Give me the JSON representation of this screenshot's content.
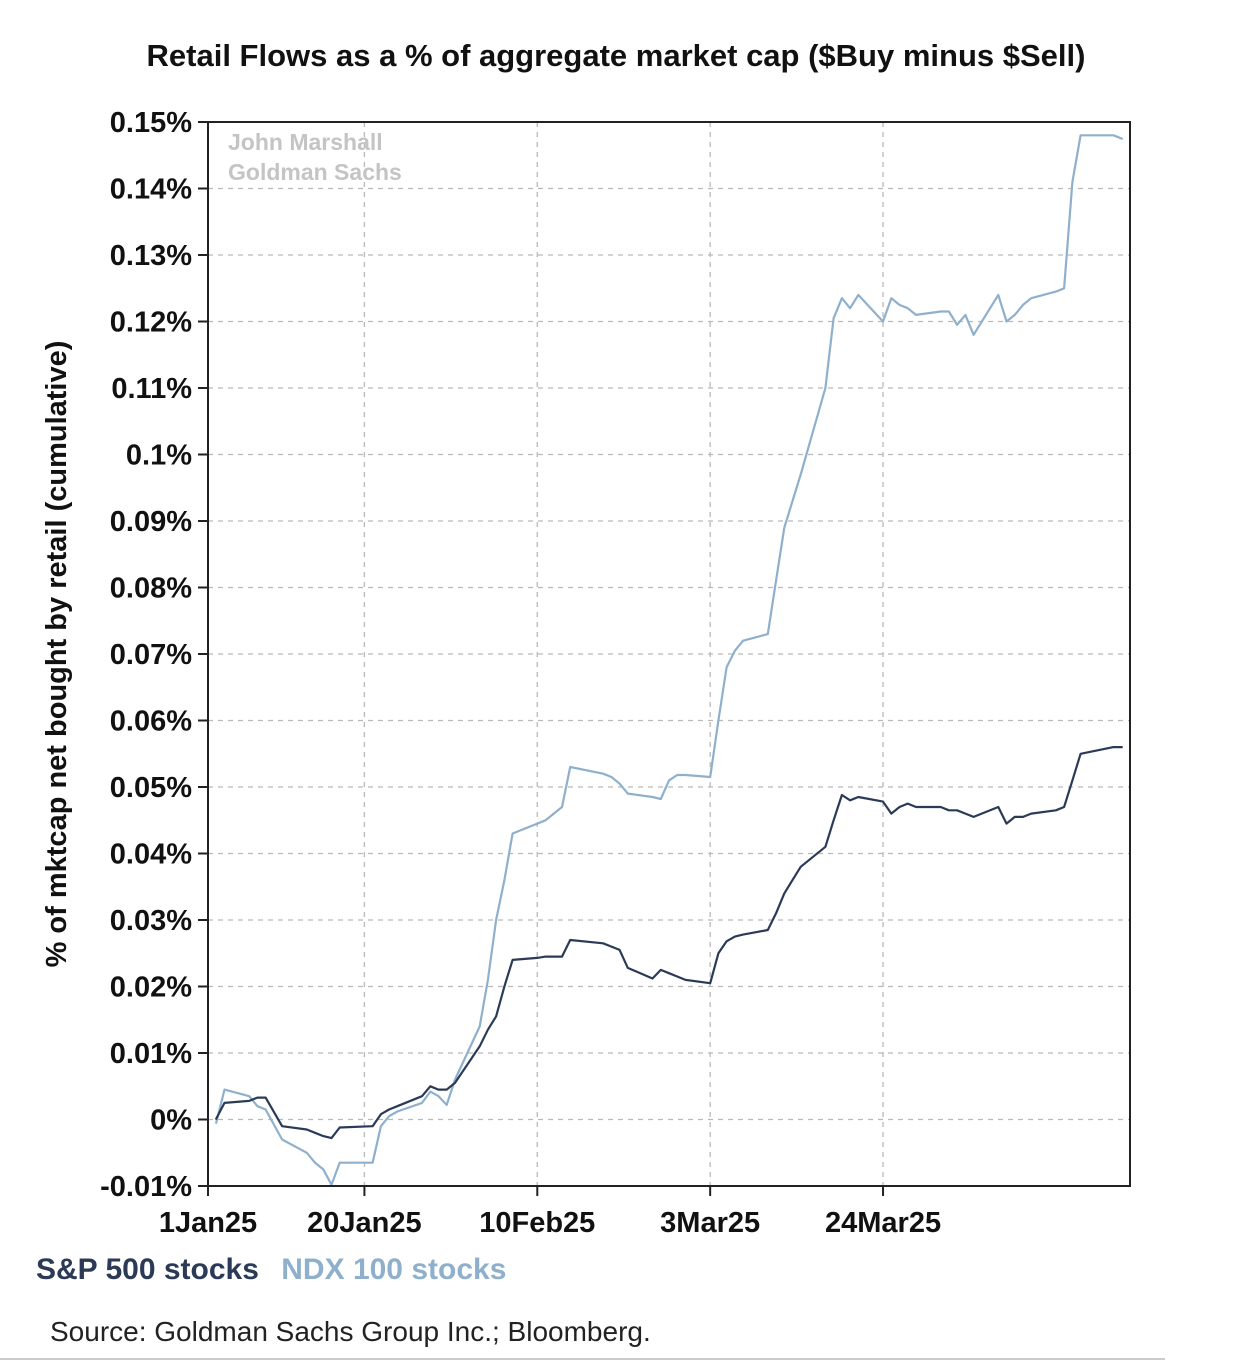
{
  "colors": {
    "sp500": "#2b3a57",
    "ndx100": "#8fb0cc",
    "grid": "#b9b9b9",
    "watermark": "#c4c4c4"
  },
  "chart_data": {
    "type": "line",
    "title": "Retail Flows as a % of aggregate market cap ($Buy minus $Sell)",
    "ylabel": "% of mktcap net bought by retail (cumulative)",
    "xlabel": "",
    "ylim": [
      -0.01,
      0.15
    ],
    "y_unit": "%",
    "y_ticks": [
      -0.01,
      0,
      0.01,
      0.02,
      0.03,
      0.04,
      0.05,
      0.06,
      0.07,
      0.08,
      0.09,
      0.1,
      0.11,
      0.12,
      0.13,
      0.14,
      0.15
    ],
    "y_tick_labels": [
      "-0.01%",
      "0%",
      "0.01%",
      "0.02%",
      "0.03%",
      "0.04%",
      "0.05%",
      "0.06%",
      "0.07%",
      "0.08%",
      "0.09%",
      "0.1%",
      "0.11%",
      "0.12%",
      "0.13%",
      "0.14%",
      "0.15%"
    ],
    "xlim": [
      "2025-01-01",
      "2025-04-23"
    ],
    "x_ticks": [
      "2025-01-01",
      "2025-01-20",
      "2025-02-10",
      "2025-03-03",
      "2025-03-24"
    ],
    "x_tick_labels": [
      "1Jan25",
      "20Jan25",
      "10Feb25",
      "3Mar25",
      "24Mar25"
    ],
    "grid": true,
    "legend": "bottom-left",
    "annotations": [
      "John Marshall",
      "Goldman Sachs"
    ],
    "series": [
      {
        "name": "S&P 500 stocks",
        "x": [
          "2025-01-02",
          "2025-01-03",
          "2025-01-06",
          "2025-01-07",
          "2025-01-08",
          "2025-01-10",
          "2025-01-13",
          "2025-01-14",
          "2025-01-15",
          "2025-01-16",
          "2025-01-17",
          "2025-01-21",
          "2025-01-22",
          "2025-01-23",
          "2025-01-24",
          "2025-01-27",
          "2025-01-28",
          "2025-01-29",
          "2025-01-30",
          "2025-01-31",
          "2025-02-03",
          "2025-02-04",
          "2025-02-05",
          "2025-02-06",
          "2025-02-07",
          "2025-02-10",
          "2025-02-11",
          "2025-02-12",
          "2025-02-13",
          "2025-02-14",
          "2025-02-18",
          "2025-02-19",
          "2025-02-20",
          "2025-02-21",
          "2025-02-24",
          "2025-02-25",
          "2025-02-26",
          "2025-02-27",
          "2025-02-28",
          "2025-03-03",
          "2025-03-04",
          "2025-03-05",
          "2025-03-06",
          "2025-03-07",
          "2025-03-10",
          "2025-03-11",
          "2025-03-12",
          "2025-03-13",
          "2025-03-14",
          "2025-03-17",
          "2025-03-18",
          "2025-03-19",
          "2025-03-20",
          "2025-03-21",
          "2025-03-24",
          "2025-03-25",
          "2025-03-26",
          "2025-03-27",
          "2025-03-28",
          "2025-03-31",
          "2025-04-01",
          "2025-04-02",
          "2025-04-03",
          "2025-04-04",
          "2025-04-07",
          "2025-04-08",
          "2025-04-09",
          "2025-04-10",
          "2025-04-11",
          "2025-04-14",
          "2025-04-15",
          "2025-04-16",
          "2025-04-17",
          "2025-04-21",
          "2025-04-22"
        ],
        "values": [
          0.0001,
          0.0025,
          0.0028,
          0.0033,
          0.0033,
          -0.001,
          -0.0015,
          -0.002,
          -0.0025,
          -0.0028,
          -0.0012,
          -0.001,
          0.0008,
          0.0015,
          0.002,
          0.0035,
          0.005,
          0.0045,
          0.0045,
          0.0055,
          0.011,
          0.0135,
          0.0155,
          0.02,
          0.024,
          0.0243,
          0.0245,
          0.0245,
          0.0245,
          0.027,
          0.0265,
          0.026,
          0.0255,
          0.0228,
          0.0212,
          0.0225,
          0.022,
          0.0215,
          0.021,
          0.0205,
          0.025,
          0.0268,
          0.0275,
          0.0278,
          0.0285,
          0.031,
          0.034,
          0.036,
          0.038,
          0.041,
          0.045,
          0.0488,
          0.048,
          0.0485,
          0.0478,
          0.046,
          0.047,
          0.0475,
          0.047,
          0.047,
          0.0465,
          0.0465,
          0.046,
          0.0455,
          0.047,
          0.0445,
          0.0455,
          0.0455,
          0.046,
          0.0465,
          0.047,
          0.051,
          0.055,
          0.056,
          0.056
        ]
      },
      {
        "name": "NDX 100 stocks",
        "x": [
          "2025-01-02",
          "2025-01-03",
          "2025-01-06",
          "2025-01-07",
          "2025-01-08",
          "2025-01-10",
          "2025-01-13",
          "2025-01-14",
          "2025-01-15",
          "2025-01-16",
          "2025-01-17",
          "2025-01-21",
          "2025-01-22",
          "2025-01-23",
          "2025-01-24",
          "2025-01-27",
          "2025-01-28",
          "2025-01-29",
          "2025-01-30",
          "2025-01-31",
          "2025-02-03",
          "2025-02-04",
          "2025-02-05",
          "2025-02-06",
          "2025-02-07",
          "2025-02-10",
          "2025-02-11",
          "2025-02-12",
          "2025-02-13",
          "2025-02-14",
          "2025-02-18",
          "2025-02-19",
          "2025-02-20",
          "2025-02-21",
          "2025-02-24",
          "2025-02-25",
          "2025-02-26",
          "2025-02-27",
          "2025-02-28",
          "2025-03-03",
          "2025-03-04",
          "2025-03-05",
          "2025-03-06",
          "2025-03-07",
          "2025-03-10",
          "2025-03-11",
          "2025-03-12",
          "2025-03-13",
          "2025-03-14",
          "2025-03-17",
          "2025-03-18",
          "2025-03-19",
          "2025-03-20",
          "2025-03-21",
          "2025-03-24",
          "2025-03-25",
          "2025-03-26",
          "2025-03-27",
          "2025-03-28",
          "2025-03-31",
          "2025-04-01",
          "2025-04-02",
          "2025-04-03",
          "2025-04-04",
          "2025-04-07",
          "2025-04-08",
          "2025-04-09",
          "2025-04-10",
          "2025-04-11",
          "2025-04-14",
          "2025-04-15",
          "2025-04-16",
          "2025-04-17",
          "2025-04-21",
          "2025-04-22"
        ],
        "values": [
          -0.0005,
          0.0045,
          0.0035,
          0.002,
          0.0015,
          -0.003,
          -0.005,
          -0.0065,
          -0.0075,
          -0.0098,
          -0.0065,
          -0.0065,
          -0.001,
          0.0005,
          0.0012,
          0.0025,
          0.0042,
          0.0035,
          0.0022,
          0.006,
          0.014,
          0.021,
          0.03,
          0.036,
          0.043,
          0.0445,
          0.045,
          0.046,
          0.047,
          0.053,
          0.052,
          0.0515,
          0.0505,
          0.049,
          0.0485,
          0.0482,
          0.051,
          0.0518,
          0.0518,
          0.0515,
          0.06,
          0.068,
          0.0705,
          0.072,
          0.073,
          0.081,
          0.089,
          0.093,
          0.097,
          0.11,
          0.1205,
          0.1235,
          0.122,
          0.124,
          0.12,
          0.1235,
          0.1225,
          0.122,
          0.121,
          0.1215,
          0.1215,
          0.1195,
          0.121,
          0.118,
          0.124,
          0.12,
          0.121,
          0.1225,
          0.1235,
          0.1245,
          0.125,
          0.141,
          0.148,
          0.148,
          0.1475
        ]
      }
    ]
  },
  "source": "Source: Goldman Sachs Group Inc.; Bloomberg."
}
